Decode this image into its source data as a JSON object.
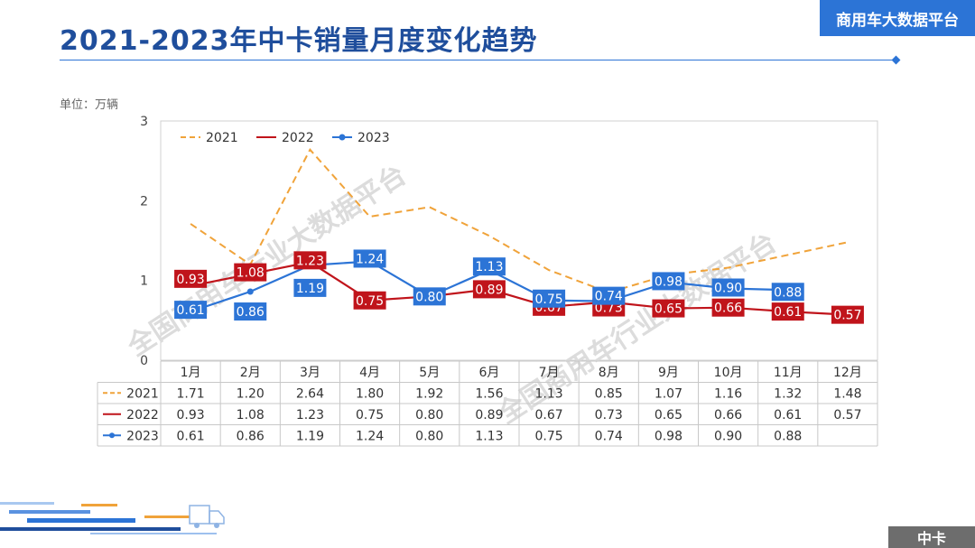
{
  "header": {
    "title": "2021-2023年中卡销量月度变化趋势",
    "brand": "商用车大数据平台"
  },
  "unit_label": "单位：万辆",
  "watermark": "全国商用车行业大数据平台",
  "footer_tag": "中卡",
  "colors": {
    "s2021": "#f0a33a",
    "s2022": "#c0141b",
    "s2023": "#2c74d6",
    "accent": "#2c74d6"
  },
  "chart_data": {
    "type": "line",
    "title": "2021-2023年中卡销量月度变化趋势",
    "ylabel": "万辆",
    "ylim": [
      0,
      3
    ],
    "yticks": [
      0,
      1,
      2,
      3
    ],
    "categories": [
      "1月",
      "2月",
      "3月",
      "4月",
      "5月",
      "6月",
      "7月",
      "8月",
      "9月",
      "10月",
      "11月",
      "12月"
    ],
    "legend_position": "top-left",
    "series": [
      {
        "name": "2021",
        "style": "dashed",
        "values": [
          1.71,
          1.2,
          2.64,
          1.8,
          1.92,
          1.56,
          1.13,
          0.85,
          1.07,
          1.16,
          1.32,
          1.48
        ],
        "table_labels": [
          "1.71",
          "1.20",
          "2.64",
          "1.80",
          "1.92",
          "1.56",
          "1.13",
          "0.85",
          "1.07",
          "1.16",
          "1.32",
          "1.48"
        ]
      },
      {
        "name": "2022",
        "style": "solid",
        "values": [
          0.93,
          1.08,
          1.23,
          0.75,
          0.8,
          0.89,
          0.67,
          0.73,
          0.65,
          0.66,
          0.61,
          0.57
        ],
        "table_labels": [
          "0.93",
          "1.08",
          "1.23",
          "0.75",
          "0.80",
          "0.89",
          "0.67",
          "0.73",
          "0.65",
          "0.66",
          "0.61",
          "0.57"
        ]
      },
      {
        "name": "2023",
        "style": "solid-marker",
        "values": [
          0.61,
          0.86,
          1.19,
          1.24,
          0.8,
          1.13,
          0.75,
          0.74,
          0.98,
          0.9,
          0.88,
          null
        ],
        "table_labels": [
          "0.61",
          "0.86",
          "1.19",
          "1.24",
          "0.80",
          "1.13",
          "0.75",
          "0.74",
          "0.98",
          "0.90",
          "0.88",
          ""
        ]
      }
    ]
  }
}
